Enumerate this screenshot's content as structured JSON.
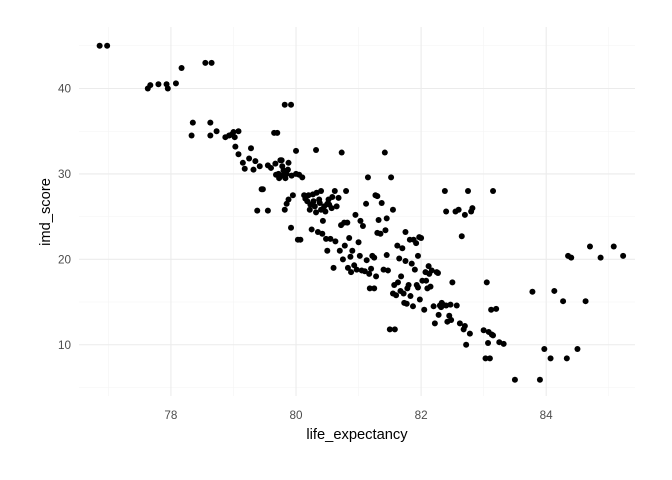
{
  "chart_data": {
    "type": "scatter",
    "xlabel": "life_expectancy",
    "ylabel": "imd_score",
    "xlim": [
      76.53,
      85.42
    ],
    "ylim": [
      4.0,
      47.2
    ],
    "x_ticks": [
      78,
      80,
      82,
      84
    ],
    "y_ticks": [
      10,
      20,
      30,
      40
    ],
    "x_ticks_labels": [
      "78",
      "80",
      "82",
      "84"
    ],
    "y_ticks_labels": [
      "10",
      "20",
      "30",
      "40"
    ],
    "grid": true,
    "point_color": "#000000",
    "points": [
      [
        76.86,
        45.0
      ],
      [
        76.98,
        45.0
      ],
      [
        77.63,
        40.0
      ],
      [
        77.67,
        40.4
      ],
      [
        77.8,
        40.5
      ],
      [
        77.93,
        40.5
      ],
      [
        77.95,
        40.0
      ],
      [
        78.08,
        40.6
      ],
      [
        78.17,
        42.4
      ],
      [
        78.55,
        43.0
      ],
      [
        78.65,
        43.0
      ],
      [
        78.35,
        36.0
      ],
      [
        78.33,
        34.5
      ],
      [
        78.63,
        36.0
      ],
      [
        78.63,
        34.5
      ],
      [
        78.73,
        35.0
      ],
      [
        78.87,
        34.3
      ],
      [
        78.93,
        34.5
      ],
      [
        78.97,
        34.6
      ],
      [
        79.0,
        34.9
      ],
      [
        79.02,
        34.3
      ],
      [
        79.08,
        35.0
      ],
      [
        79.03,
        33.2
      ],
      [
        79.08,
        32.3
      ],
      [
        79.15,
        31.3
      ],
      [
        79.18,
        30.6
      ],
      [
        79.25,
        31.8
      ],
      [
        79.28,
        33.0
      ],
      [
        79.32,
        30.5
      ],
      [
        79.35,
        31.5
      ],
      [
        79.38,
        25.7
      ],
      [
        79.42,
        30.9
      ],
      [
        79.45,
        28.2
      ],
      [
        79.47,
        28.2
      ],
      [
        79.55,
        31.0
      ],
      [
        79.55,
        25.7
      ],
      [
        79.6,
        30.7
      ],
      [
        79.65,
        34.8
      ],
      [
        79.67,
        31.2
      ],
      [
        79.68,
        29.9
      ],
      [
        79.7,
        34.8
      ],
      [
        79.72,
        30.0
      ],
      [
        79.73,
        29.5
      ],
      [
        79.75,
        31.6
      ],
      [
        79.77,
        31.6
      ],
      [
        79.78,
        30.9
      ],
      [
        79.78,
        29.8
      ],
      [
        79.8,
        30.4
      ],
      [
        79.82,
        38.1
      ],
      [
        79.82,
        25.8
      ],
      [
        79.83,
        29.5
      ],
      [
        79.85,
        30.0
      ],
      [
        79.85,
        26.5
      ],
      [
        79.87,
        30.5
      ],
      [
        79.88,
        31.3
      ],
      [
        79.88,
        27.0
      ],
      [
        79.92,
        38.1
      ],
      [
        79.92,
        23.7
      ],
      [
        79.93,
        29.8
      ],
      [
        79.95,
        27.5
      ],
      [
        80.0,
        32.7
      ],
      [
        80.0,
        30.0
      ],
      [
        80.03,
        22.3
      ],
      [
        80.05,
        29.9
      ],
      [
        80.07,
        22.3
      ],
      [
        80.1,
        29.6
      ],
      [
        80.13,
        27.5
      ],
      [
        80.15,
        27.1
      ],
      [
        80.18,
        26.8
      ],
      [
        80.2,
        27.5
      ],
      [
        80.22,
        25.8
      ],
      [
        80.23,
        26.4
      ],
      [
        80.25,
        23.5
      ],
      [
        80.27,
        27.6
      ],
      [
        80.28,
        26.8
      ],
      [
        80.3,
        26.2
      ],
      [
        80.32,
        32.8
      ],
      [
        80.32,
        25.5
      ],
      [
        80.33,
        27.8
      ],
      [
        80.35,
        23.2
      ],
      [
        80.37,
        27.0
      ],
      [
        80.38,
        26.6
      ],
      [
        80.4,
        28.0
      ],
      [
        80.4,
        25.8
      ],
      [
        80.42,
        23.0
      ],
      [
        80.43,
        24.5
      ],
      [
        80.45,
        26.2
      ],
      [
        80.47,
        25.6
      ],
      [
        80.48,
        22.4
      ],
      [
        80.5,
        26.5
      ],
      [
        80.5,
        21.0
      ],
      [
        80.52,
        27.0
      ],
      [
        80.53,
        26.4
      ],
      [
        80.55,
        22.4
      ],
      [
        80.57,
        26.0
      ],
      [
        80.58,
        27.3
      ],
      [
        80.6,
        19.0
      ],
      [
        80.62,
        28.0
      ],
      [
        80.63,
        22.1
      ],
      [
        80.65,
        26.2
      ],
      [
        80.68,
        27.2
      ],
      [
        80.7,
        21.0
      ],
      [
        80.72,
        24.0
      ],
      [
        80.73,
        32.5
      ],
      [
        80.75,
        20.0
      ],
      [
        80.77,
        24.3
      ],
      [
        80.78,
        21.6
      ],
      [
        80.8,
        28.0
      ],
      [
        80.82,
        24.3
      ],
      [
        80.83,
        19.0
      ],
      [
        80.85,
        22.5
      ],
      [
        80.87,
        20.3
      ],
      [
        80.88,
        18.5
      ],
      [
        80.9,
        21.0
      ],
      [
        80.93,
        19.3
      ],
      [
        80.95,
        25.2
      ],
      [
        80.97,
        18.8
      ],
      [
        81.0,
        22.0
      ],
      [
        81.02,
        20.4
      ],
      [
        81.03,
        24.5
      ],
      [
        81.05,
        18.7
      ],
      [
        81.07,
        23.9
      ],
      [
        81.1,
        18.6
      ],
      [
        81.12,
        26.5
      ],
      [
        81.13,
        19.9
      ],
      [
        81.15,
        29.6
      ],
      [
        81.17,
        18.3
      ],
      [
        81.18,
        16.6
      ],
      [
        81.2,
        18.9
      ],
      [
        81.22,
        20.4
      ],
      [
        81.25,
        16.6
      ],
      [
        81.27,
        27.5
      ],
      [
        81.28,
        18.0
      ],
      [
        81.3,
        23.1
      ],
      [
        81.32,
        24.6
      ],
      [
        81.35,
        23.0
      ],
      [
        81.37,
        26.6
      ],
      [
        81.4,
        18.8
      ],
      [
        81.42,
        32.5
      ],
      [
        81.43,
        23.4
      ],
      [
        81.45,
        20.5
      ],
      [
        81.47,
        18.7
      ],
      [
        81.5,
        11.8
      ],
      [
        81.52,
        29.6
      ],
      [
        81.55,
        16.0
      ],
      [
        81.57,
        17.0
      ],
      [
        81.58,
        11.8
      ],
      [
        81.6,
        15.8
      ],
      [
        81.62,
        21.6
      ],
      [
        81.63,
        17.3
      ],
      [
        81.65,
        20.1
      ],
      [
        81.67,
        16.3
      ],
      [
        81.68,
        18.0
      ],
      [
        81.7,
        21.3
      ],
      [
        81.72,
        16.0
      ],
      [
        81.73,
        14.9
      ],
      [
        81.75,
        19.8
      ],
      [
        81.77,
        14.8
      ],
      [
        81.78,
        16.6
      ],
      [
        81.8,
        17.0
      ],
      [
        81.82,
        22.3
      ],
      [
        81.83,
        15.7
      ],
      [
        81.85,
        19.5
      ],
      [
        81.87,
        14.5
      ],
      [
        81.88,
        22.3
      ],
      [
        81.9,
        18.8
      ],
      [
        81.92,
        21.9
      ],
      [
        81.93,
        17.0
      ],
      [
        81.95,
        16.7
      ],
      [
        81.97,
        22.6
      ],
      [
        81.98,
        15.3
      ],
      [
        82.0,
        22.5
      ],
      [
        82.02,
        17.5
      ],
      [
        82.05,
        14.1
      ],
      [
        82.07,
        18.5
      ],
      [
        82.08,
        17.5
      ],
      [
        82.1,
        16.6
      ],
      [
        82.12,
        19.2
      ],
      [
        82.13,
        18.3
      ],
      [
        82.15,
        16.8
      ],
      [
        82.17,
        18.7
      ],
      [
        82.2,
        14.5
      ],
      [
        82.22,
        12.5
      ],
      [
        82.25,
        18.5
      ],
      [
        82.27,
        18.4
      ],
      [
        82.28,
        13.5
      ],
      [
        82.3,
        14.6
      ],
      [
        82.32,
        14.4
      ],
      [
        82.33,
        14.9
      ],
      [
        82.35,
        14.7
      ],
      [
        82.38,
        28.0
      ],
      [
        82.4,
        14.6
      ],
      [
        82.42,
        12.7
      ],
      [
        82.45,
        13.4
      ],
      [
        82.47,
        14.7
      ],
      [
        82.48,
        12.9
      ],
      [
        82.5,
        17.3
      ],
      [
        82.55,
        25.6
      ],
      [
        82.57,
        14.6
      ],
      [
        82.6,
        25.8
      ],
      [
        82.62,
        12.5
      ],
      [
        82.65,
        22.7
      ],
      [
        82.68,
        11.8
      ],
      [
        82.7,
        12.2
      ],
      [
        82.72,
        10.0
      ],
      [
        82.75,
        28.0
      ],
      [
        82.78,
        11.3
      ],
      [
        82.8,
        25.6
      ],
      [
        83.0,
        11.7
      ],
      [
        83.03,
        8.4
      ],
      [
        83.05,
        17.3
      ],
      [
        83.07,
        10.2
      ],
      [
        83.08,
        11.5
      ],
      [
        83.1,
        8.4
      ],
      [
        83.12,
        14.1
      ],
      [
        83.13,
        11.2
      ],
      [
        83.15,
        11.1
      ],
      [
        83.2,
        14.2
      ],
      [
        83.25,
        10.3
      ],
      [
        83.32,
        10.1
      ],
      [
        83.15,
        28.0
      ],
      [
        82.82,
        26.0
      ],
      [
        82.7,
        25.2
      ],
      [
        82.4,
        25.6
      ],
      [
        81.55,
        25.8
      ],
      [
        81.75,
        23.2
      ],
      [
        81.45,
        24.8
      ],
      [
        81.3,
        27.4
      ],
      [
        81.25,
        20.2
      ],
      [
        81.95,
        20.4
      ],
      [
        83.5,
        5.9
      ],
      [
        83.78,
        16.2
      ],
      [
        83.9,
        5.9
      ],
      [
        83.97,
        9.5
      ],
      [
        84.07,
        8.4
      ],
      [
        84.13,
        16.3
      ],
      [
        84.27,
        15.1
      ],
      [
        84.33,
        8.4
      ],
      [
        84.35,
        20.4
      ],
      [
        84.4,
        20.2
      ],
      [
        84.5,
        9.5
      ],
      [
        84.63,
        15.1
      ],
      [
        84.7,
        21.5
      ],
      [
        84.87,
        20.2
      ],
      [
        85.08,
        21.5
      ],
      [
        85.23,
        20.4
      ]
    ]
  }
}
